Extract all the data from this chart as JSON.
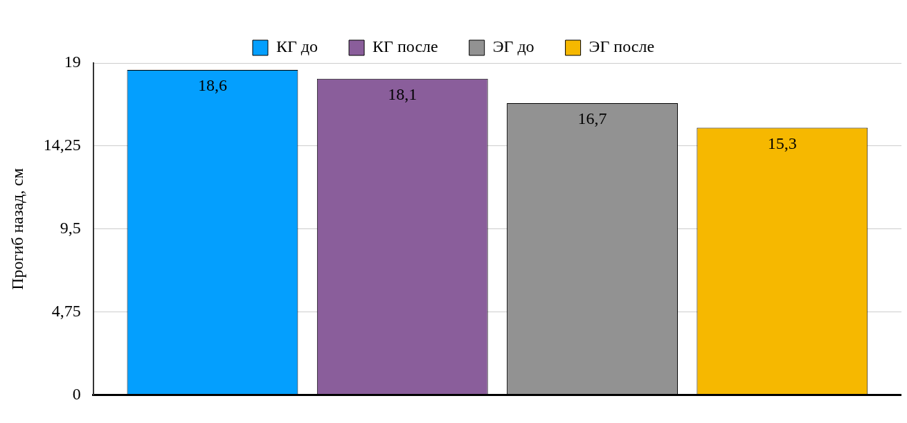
{
  "chart_data": {
    "type": "bar",
    "ylabel": "Прогиб назад, см",
    "categories": [
      null
    ],
    "series": [
      {
        "name": "КГ до",
        "color": "#049ffe",
        "values": [
          18.6
        ],
        "value_labels": [
          "18,6"
        ]
      },
      {
        "name": "КГ после",
        "color": "#8a5e9b",
        "values": [
          18.1
        ],
        "value_labels": [
          "18,1"
        ]
      },
      {
        "name": "ЭГ до",
        "color": "#929292",
        "values": [
          16.7
        ],
        "value_labels": [
          "16,7"
        ]
      },
      {
        "name": "ЭГ после",
        "color": "#f6b800",
        "values": [
          15.3
        ],
        "value_labels": [
          "15,3"
        ]
      }
    ],
    "ylim": [
      0,
      19
    ],
    "yticks": [
      0,
      {
        "value": 4.75,
        "label": "4,75"
      },
      {
        "value": 9.5,
        "label": "9,5"
      },
      {
        "value": 14.25,
        "label": "14,25"
      },
      19
    ],
    "grid": "y",
    "legend": "top"
  }
}
